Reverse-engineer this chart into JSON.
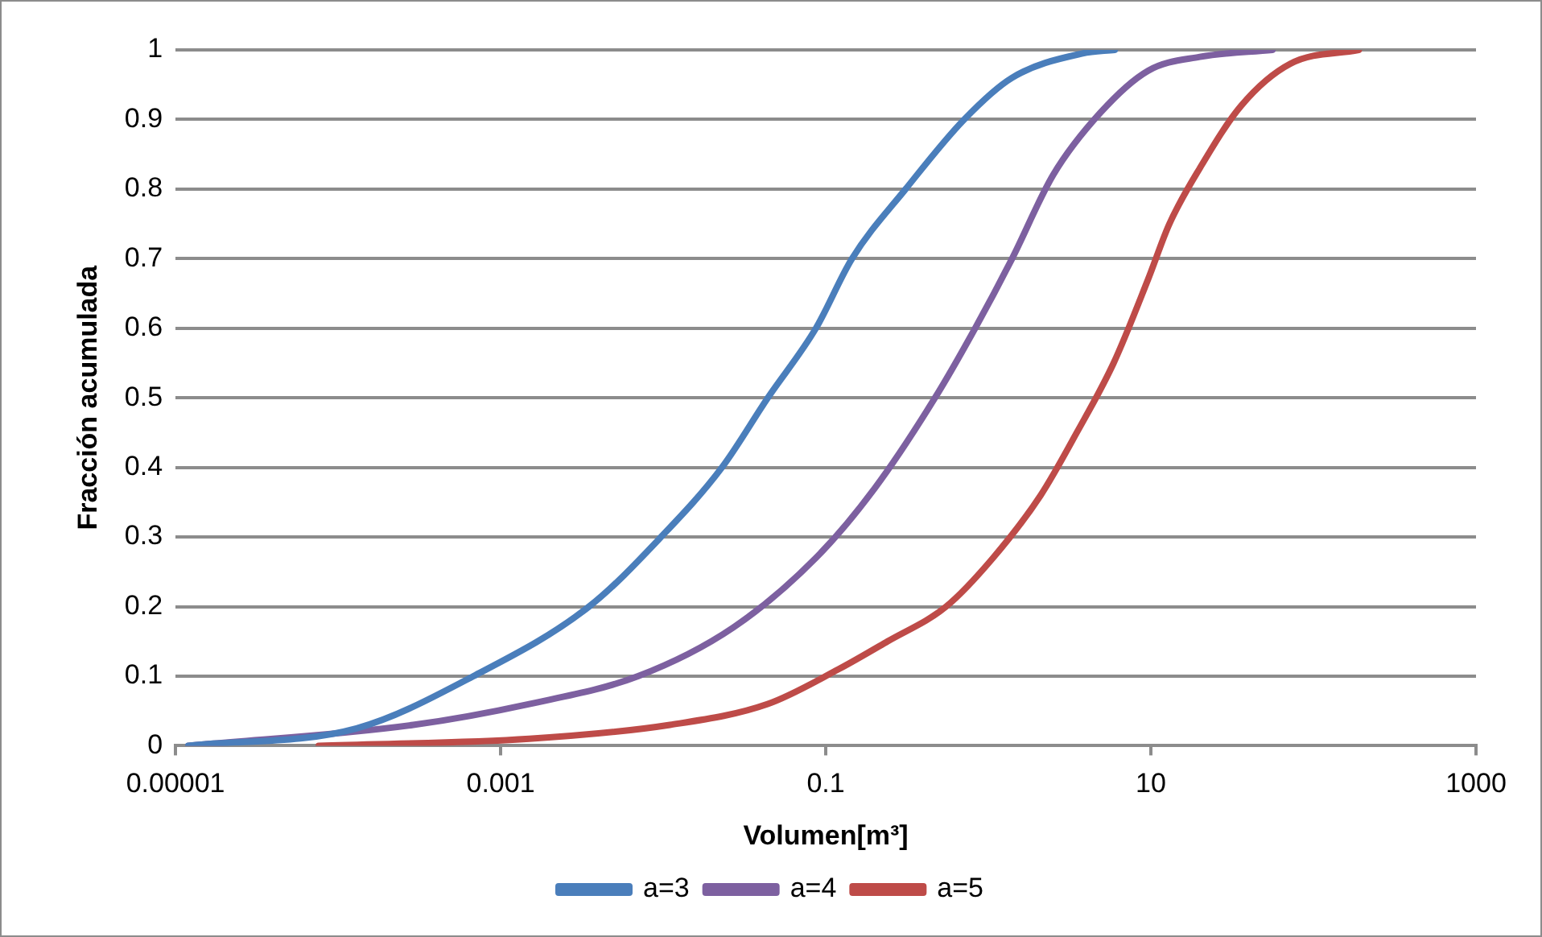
{
  "chart_data": {
    "type": "line",
    "xlabel": "Volumen[m³]",
    "ylabel": "Fracción acumulada",
    "log": "x",
    "xlim": [
      1e-05,
      1000
    ],
    "xticks": [
      {
        "value": 1e-05,
        "label": "0.00001"
      },
      0.001,
      0.1,
      10,
      1000
    ],
    "ylim": [
      0,
      1
    ],
    "yticks": [
      0,
      0.1,
      0.2,
      0.3,
      0.4,
      0.5,
      0.6,
      0.7,
      0.8,
      0.9,
      1
    ],
    "grid": "y",
    "legend": "bottom",
    "marker": "none",
    "line_style": "solid",
    "series": [
      {
        "name": "a=3",
        "color": "#4a7ebb",
        "x": [
          1.2e-05,
          0.00013,
          0.00068,
          0.0035,
          0.0097,
          0.023,
          0.044,
          0.087,
          0.145,
          0.31,
          0.71,
          1.4,
          3.8,
          6
        ],
        "values": [
          0,
          0.025,
          0.1,
          0.2,
          0.3,
          0.4,
          0.5,
          0.6,
          0.7,
          0.8,
          0.9,
          0.96,
          0.995,
          1
        ]
      },
      {
        "name": "a=4",
        "color": "#7d60a0",
        "x": [
          1.2e-05,
          0.00029,
          0.0015,
          0.007,
          0.027,
          0.087,
          0.2,
          0.47,
          0.83,
          1.4,
          2.5,
          4.9,
          9.6,
          20,
          56
        ],
        "values": [
          0,
          0.03,
          0.06,
          0.1,
          0.17,
          0.27,
          0.37,
          0.5,
          0.6,
          0.7,
          0.82,
          0.91,
          0.97,
          0.99,
          1
        ]
      },
      {
        "name": "a=5",
        "color": "#be4b48",
        "x": [
          7.6e-05,
          0.0015,
          0.011,
          0.044,
          0.12,
          0.24,
          0.55,
          1.07,
          2.1,
          3.5,
          5.9,
          9.6,
          13,
          20,
          36,
          72,
          190
        ],
        "values": [
          0,
          0.01,
          0.03,
          0.06,
          0.11,
          0.15,
          0.2,
          0.27,
          0.36,
          0.45,
          0.55,
          0.67,
          0.75,
          0.83,
          0.92,
          0.98,
          1
        ]
      }
    ]
  }
}
